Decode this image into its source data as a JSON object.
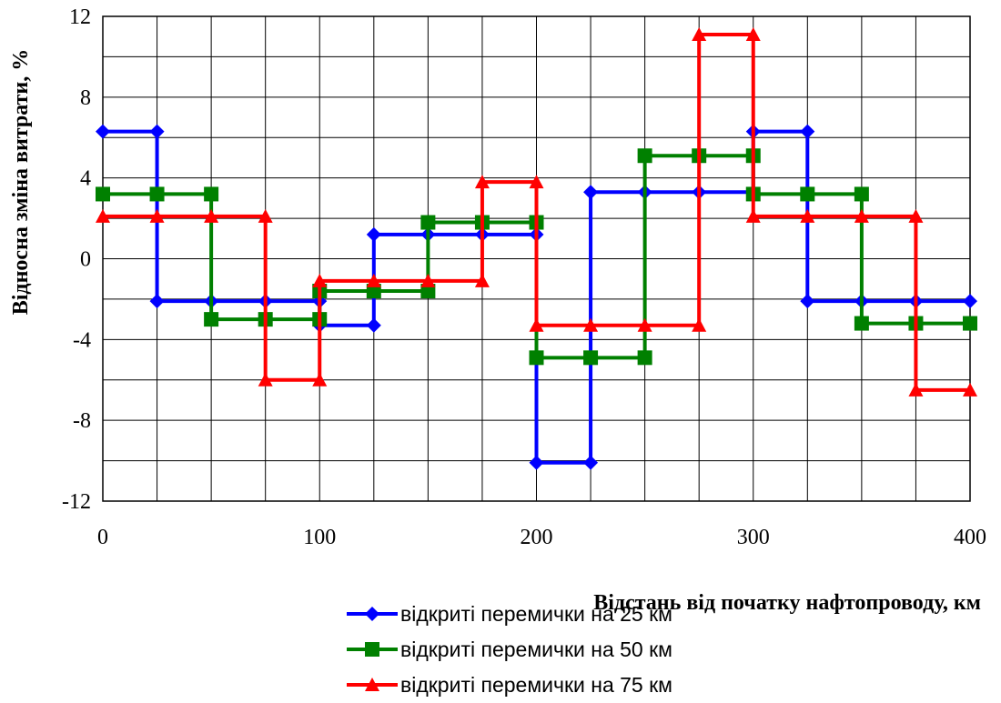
{
  "chart_data": {
    "type": "line",
    "step": true,
    "xlabel": "Відстань від початку нафтопроводу, км",
    "ylabel": "Відносна зміна витрати, %",
    "xlim": [
      0,
      400
    ],
    "ylim": [
      -12,
      12
    ],
    "x_ticks": [
      "0",
      "100",
      "200",
      "300",
      "400"
    ],
    "y_ticks": [
      "12",
      "8",
      "4",
      "0",
      "-4",
      "-8",
      "-12"
    ],
    "x_grid_step": 25,
    "y_grid_step": 2,
    "grid": true,
    "legend_position": "bottom",
    "series": [
      {
        "name": "відкриті перемички на 25 км",
        "color": "#0000FF",
        "marker": "diamond",
        "x": [
          0,
          25,
          25,
          50,
          75,
          100,
          100,
          125,
          125,
          150,
          175,
          200,
          200,
          225,
          225,
          250,
          275,
          300,
          300,
          325,
          325,
          350,
          375,
          400
        ],
        "y": [
          6.3,
          6.3,
          -2.1,
          -2.1,
          -2.1,
          -2.1,
          -3.3,
          -3.3,
          1.2,
          1.2,
          1.2,
          1.2,
          -10.1,
          -10.1,
          3.3,
          3.3,
          3.3,
          3.3,
          6.3,
          6.3,
          -2.1,
          -2.1,
          -2.1,
          -2.1
        ]
      },
      {
        "name": "відкриті перемички на 50 км",
        "color": "#008000",
        "marker": "square",
        "x": [
          0,
          25,
          50,
          50,
          75,
          100,
          100,
          125,
          150,
          150,
          175,
          200,
          200,
          225,
          250,
          250,
          275,
          300,
          300,
          325,
          350,
          350,
          375,
          400
        ],
        "y": [
          3.2,
          3.2,
          3.2,
          -3.0,
          -3.0,
          -3.0,
          -1.6,
          -1.6,
          -1.6,
          1.8,
          1.8,
          1.8,
          -4.9,
          -4.9,
          -4.9,
          5.1,
          5.1,
          5.1,
          3.2,
          3.2,
          3.2,
          -3.2,
          -3.2,
          -3.2
        ]
      },
      {
        "name": "відкриті перемички на 75 км",
        "color": "#FF0000",
        "marker": "triangle",
        "x": [
          0,
          25,
          50,
          75,
          75,
          100,
          100,
          125,
          150,
          175,
          175,
          200,
          200,
          225,
          250,
          275,
          275,
          300,
          300,
          325,
          350,
          375,
          375,
          400
        ],
        "y": [
          2.1,
          2.1,
          2.1,
          2.1,
          -6.0,
          -6.0,
          -1.1,
          -1.1,
          -1.1,
          -1.1,
          3.8,
          3.8,
          -3.3,
          -3.3,
          -3.3,
          -3.3,
          11.1,
          11.1,
          2.1,
          2.1,
          2.1,
          2.1,
          -6.5,
          -6.5
        ]
      }
    ]
  }
}
